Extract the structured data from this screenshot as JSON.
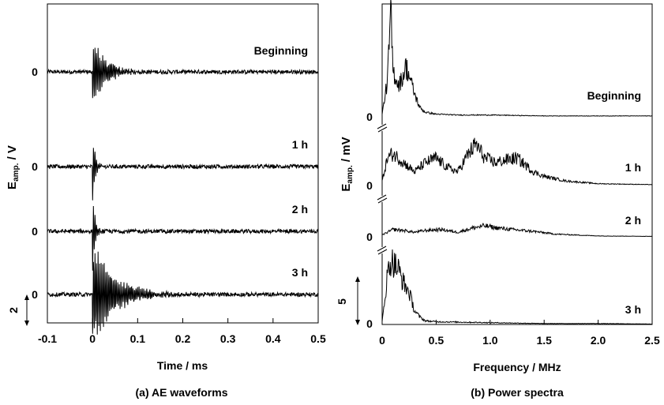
{
  "chart_data": [
    {
      "type": "line",
      "caption": "(a) AE waveforms",
      "xlabel": "Time / ms",
      "ylabel_main": "E",
      "ylabel_sub": "amp.",
      "ylabel_unit": " / V",
      "xlim": [
        -0.1,
        0.5
      ],
      "xticks": [
        "-0.1",
        "0",
        "0.1",
        "0.2",
        "0.3",
        "0.4",
        "0.5"
      ],
      "scale_bar_label": "2",
      "scale_bar_value": 2,
      "series": [
        {
          "name": "Beginning",
          "baseline_label": "0",
          "burst_start": 0.0,
          "peak_amplitude": 0.55,
          "decay_ms": 0.03
        },
        {
          "name": "1 h",
          "baseline_label": "0",
          "burst_start": 0.0,
          "peak_amplitude": 0.75,
          "decay_ms": 0.005
        },
        {
          "name": "2 h",
          "baseline_label": "0",
          "burst_start": 0.0,
          "peak_amplitude": 0.75,
          "decay_ms": 0.005
        },
        {
          "name": "3 h",
          "baseline_label": "0",
          "burst_start": 0.0,
          "peak_amplitude": 0.85,
          "decay_ms": 0.05
        }
      ]
    },
    {
      "type": "line",
      "caption": "(b) Power spectra",
      "xlabel": "Frequency / MHz",
      "ylabel_main": "E",
      "ylabel_sub": "amp.",
      "ylabel_unit": " / mV",
      "xlim": [
        0,
        2.5
      ],
      "xticks": [
        "0",
        "0.5",
        "1.0",
        "1.5",
        "2.0",
        "2.5"
      ],
      "scale_bar_label": "5",
      "scale_bar_value": 5,
      "series": [
        {
          "name": "Beginning",
          "baseline_label": "0",
          "x": [
            0,
            0.05,
            0.08,
            0.1,
            0.12,
            0.15,
            0.18,
            0.22,
            0.25,
            0.3,
            0.35,
            0.4,
            0.5,
            0.7,
            1.0,
            1.5,
            2.0,
            2.5
          ],
          "y": [
            0.3,
            4.0,
            11.5,
            5.0,
            4.5,
            3.5,
            4.0,
            5.5,
            4.5,
            2.5,
            1.0,
            0.5,
            0.3,
            0.2,
            0.2,
            0.1,
            0.1,
            0.1
          ]
        },
        {
          "name": "1 h",
          "baseline_label": "0",
          "x": [
            0,
            0.05,
            0.1,
            0.2,
            0.3,
            0.4,
            0.5,
            0.6,
            0.7,
            0.8,
            0.87,
            0.95,
            1.05,
            1.15,
            1.25,
            1.3,
            1.4,
            1.5,
            1.7,
            2.0,
            2.5
          ],
          "y": [
            0.5,
            3.0,
            3.5,
            2.5,
            1.5,
            2.5,
            3.0,
            2.0,
            1.5,
            3.5,
            4.5,
            3.0,
            2.5,
            2.8,
            3.0,
            2.5,
            1.5,
            1.0,
            0.5,
            0.2,
            0.1
          ]
        },
        {
          "name": "2 h",
          "baseline_label": "0",
          "x": [
            0,
            0.1,
            0.2,
            0.3,
            0.4,
            0.55,
            0.7,
            0.85,
            0.95,
            1.05,
            1.2,
            1.4,
            1.6,
            2.0,
            2.5
          ],
          "y": [
            0.2,
            0.8,
            0.7,
            0.5,
            0.7,
            0.8,
            0.5,
            1.0,
            1.2,
            1.0,
            0.8,
            0.6,
            0.3,
            0.1,
            0.05
          ]
        },
        {
          "name": "3 h",
          "baseline_label": "0",
          "x": [
            0,
            0.05,
            0.08,
            0.12,
            0.15,
            0.2,
            0.25,
            0.3,
            0.35,
            0.4,
            0.5,
            1.0,
            1.5,
            2.0,
            2.5
          ],
          "y": [
            0.3,
            5.5,
            7.0,
            6.5,
            6.0,
            4.5,
            3.5,
            1.5,
            0.8,
            0.4,
            0.3,
            0.2,
            0.1,
            0.1,
            0.05
          ]
        }
      ]
    }
  ]
}
